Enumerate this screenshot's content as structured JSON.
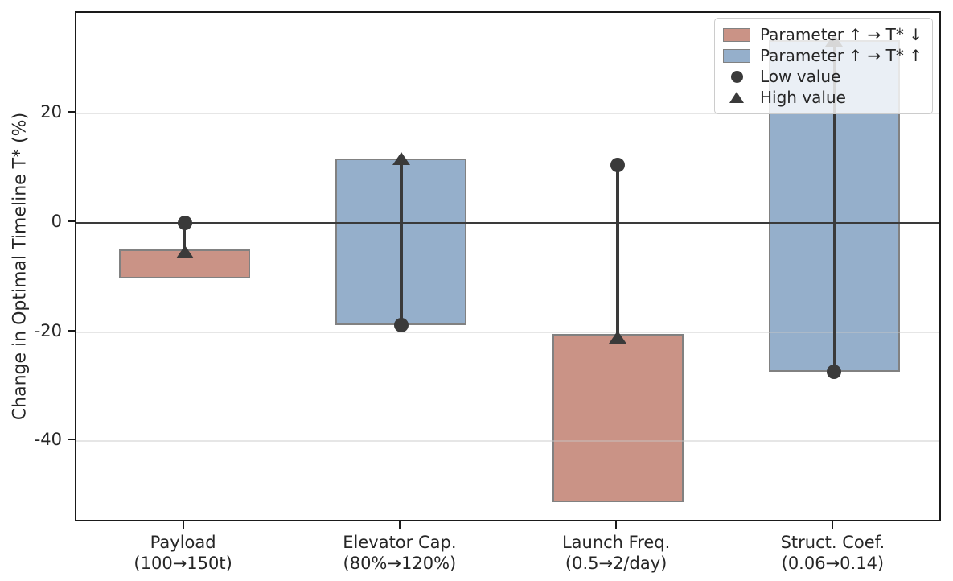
{
  "chart_data": {
    "type": "bar",
    "title": "",
    "ylabel": "Change in Optimal Timeline T* (%)",
    "ylim": [
      -55,
      38.5
    ],
    "yticks": [
      20,
      0,
      -20,
      -40
    ],
    "grid": "horizontal",
    "legend_position": "upper right",
    "colors": {
      "decrease_fill": "#CA9386",
      "increase_fill": "#95AFCB",
      "bar_edge": "#818181",
      "marker": "#3A3A3A",
      "zero_line": "#3A3A3A",
      "grid": "#E6E6E6",
      "spine": "#1A1A1A",
      "text": "#262626"
    },
    "legend": [
      {
        "swatch": "patch-decrease",
        "label": "Parameter ↑ → T* ↓"
      },
      {
        "swatch": "patch-increase",
        "label": "Parameter ↑ → T* ↑"
      },
      {
        "swatch": "circle",
        "label": "Low value"
      },
      {
        "swatch": "triangle",
        "label": "High value"
      }
    ],
    "categories": [
      {
        "label": "Payload",
        "sublabel": "(100→150t)",
        "direction": "decrease",
        "bar_top": -4.9,
        "bar_bottom": -10.1,
        "low_value_change": 0,
        "high_value_change": -5.3
      },
      {
        "label": "Elevator Cap.",
        "sublabel": "(80%→120%)",
        "direction": "increase",
        "bar_top": 11.8,
        "bar_bottom": -18.7,
        "low_value_change": -18.7,
        "high_value_change": 11.8
      },
      {
        "label": "Launch Freq.",
        "sublabel": "(0.5→2/day)",
        "direction": "decrease",
        "bar_top": -20.3,
        "bar_bottom": -51.2,
        "low_value_change": 10.6,
        "high_value_change": -20.9
      },
      {
        "label": "Struct. Coef.",
        "sublabel": "(0.06→0.14)",
        "direction": "increase",
        "bar_top": 33.5,
        "bar_bottom": -27.3,
        "low_value_change": -27.3,
        "high_value_change": 33.5
      }
    ]
  }
}
